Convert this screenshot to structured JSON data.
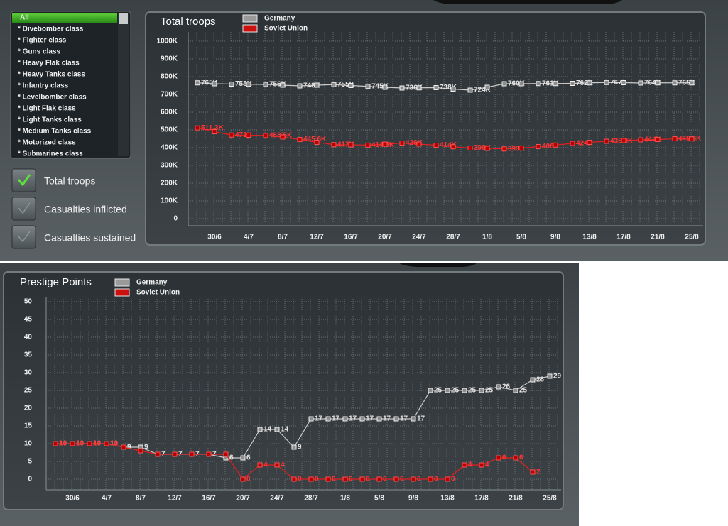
{
  "sidebar": {
    "items": [
      "All",
      "* Divebomber class",
      "* Fighter class",
      "* Guns class",
      "* Heavy Flak class",
      "* Heavy Tanks class",
      "* Infantry class",
      "* Levelbomber class",
      "* Light Flak class",
      "* Light Tanks class",
      "* Medium Tanks class",
      "* Motorized class",
      "* Submarines class"
    ],
    "options": [
      "Total troops",
      "Casualties inflicted",
      "Casualties sustained"
    ]
  },
  "chart_data": [
    {
      "type": "line",
      "title": "Total troops",
      "categories": [
        null,
        "30/6",
        null,
        "4/7",
        null,
        "8/7",
        null,
        "12/7",
        null,
        "16/7",
        null,
        "20/7",
        null,
        "24/7",
        null,
        "28/7",
        null,
        "1/8",
        null,
        "5/8",
        null,
        "9/8",
        null,
        "13/8",
        null,
        "17/8",
        null,
        "21/8",
        null,
        "25/8"
      ],
      "series": [
        {
          "name": "Germany",
          "color": "#9a9a9a",
          "values": [
            765,
            760,
            758,
            757,
            756,
            752,
            748,
            752,
            755,
            750,
            745,
            740,
            736,
            737,
            738,
            730,
            724,
            740,
            760,
            760,
            761,
            761,
            762,
            765,
            767,
            766,
            764,
            765,
            765,
            765
          ],
          "value_labels": [
            "765K",
            null,
            "758K",
            null,
            "756K",
            null,
            "748K",
            null,
            "755K",
            null,
            "745K",
            null,
            "736K",
            null,
            "738K",
            null,
            "724K",
            null,
            "760K",
            null,
            "761K",
            null,
            "762K",
            null,
            "767K",
            null,
            "764K",
            null,
            "765K",
            null
          ]
        },
        {
          "name": "Soviet Union",
          "color": "#cc1010",
          "values": [
            511.3,
            490,
            471,
            470,
            468.5,
            460,
            445.6,
            430,
            417,
            416,
            414.5,
            420,
            426,
            420,
            414,
            405,
            398,
            396,
            393,
            398,
            406,
            415,
            424,
            430,
            435.9,
            440,
            444,
            446,
            449.8,
            449
          ],
          "value_labels": [
            "511.3K",
            null,
            "471K",
            null,
            "468.5K",
            null,
            "445.6K",
            null,
            "417K",
            null,
            "414.5K",
            null,
            "426K",
            null,
            "414K",
            null,
            "398K",
            null,
            "393K",
            null,
            "406K",
            null,
            "424K",
            null,
            "435.9K",
            null,
            "444K",
            null,
            "449.8K",
            null
          ]
        }
      ],
      "ylim": [
        0,
        1000
      ],
      "yticks": [
        0,
        {
          "value": 100,
          "label": "100K"
        },
        {
          "value": 200,
          "label": "200K"
        },
        {
          "value": 300,
          "label": "300K"
        },
        {
          "value": 400,
          "label": "400K"
        },
        {
          "value": 500,
          "label": "500K"
        },
        {
          "value": 600,
          "label": "600K"
        },
        {
          "value": 700,
          "label": "700K"
        },
        {
          "value": 800,
          "label": "800K"
        },
        {
          "value": 900,
          "label": "900K"
        },
        {
          "value": 1000,
          "label": "1000K"
        }
      ],
      "grid": true
    },
    {
      "type": "line",
      "title": "Prestige Points",
      "categories": [
        null,
        "30/6",
        null,
        "4/7",
        null,
        "8/7",
        null,
        "12/7",
        null,
        "16/7",
        null,
        "20/7",
        null,
        "24/7",
        null,
        "28/7",
        null,
        "1/8",
        null,
        "5/8",
        null,
        "9/8",
        null,
        "13/8",
        null,
        "17/8",
        null,
        "21/8",
        null,
        "25/8"
      ],
      "series": [
        {
          "name": "Germany",
          "color": "#9a9a9a",
          "values": [
            10,
            10,
            10,
            10,
            9,
            9,
            7,
            7,
            7,
            7,
            6,
            6,
            14,
            14,
            9,
            17,
            17,
            17,
            17,
            17,
            17,
            17,
            25,
            25,
            25,
            25,
            26,
            25,
            28,
            29
          ]
        },
        {
          "name": "Soviet Union",
          "color": "#cc1010",
          "values": [
            10,
            10,
            10,
            10,
            9,
            8,
            7,
            7,
            7,
            7,
            7,
            0,
            4,
            4,
            0,
            0,
            0,
            0,
            0,
            0,
            0,
            0,
            0,
            0,
            4,
            4,
            6,
            6,
            2,
            null
          ],
          "value_labels": [
            "10",
            "10",
            "10",
            "10",
            null,
            null,
            null,
            null,
            null,
            null,
            null,
            "0",
            "4",
            "4",
            "0",
            "0",
            "0",
            "0",
            "0",
            "0",
            "0",
            "0",
            "0",
            "0",
            "4",
            "4",
            "6",
            "6",
            "2",
            null
          ]
        }
      ],
      "ylim": [
        0,
        50
      ],
      "yticks": [
        0,
        5,
        10,
        15,
        20,
        25,
        30,
        35,
        40,
        45,
        50
      ],
      "grid": true
    }
  ]
}
